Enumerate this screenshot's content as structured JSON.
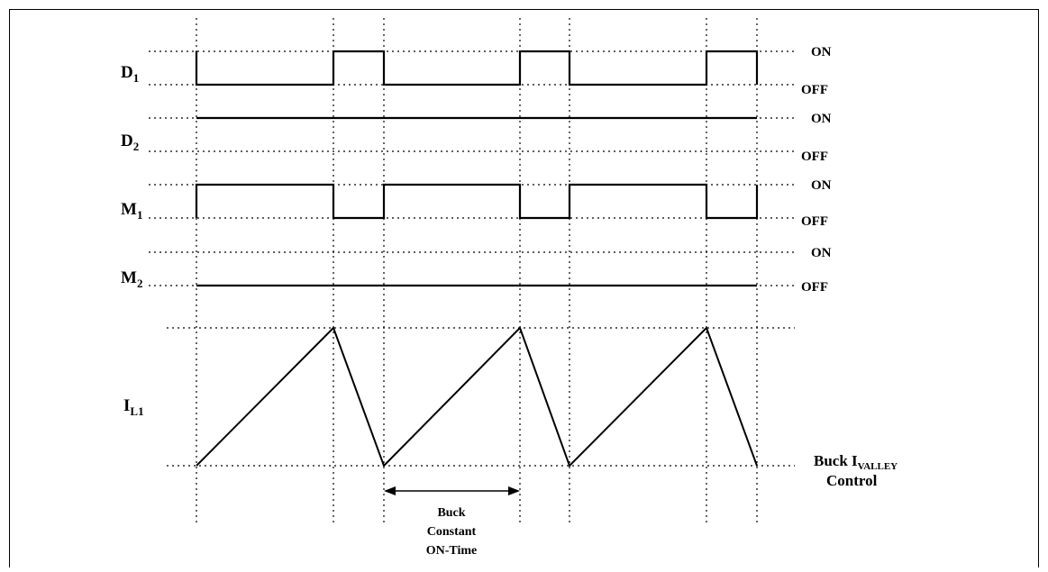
{
  "signals": {
    "d1": {
      "main": "D",
      "sub": "1"
    },
    "d2": {
      "main": "D",
      "sub": "2"
    },
    "m1": {
      "main": "M",
      "sub": "1"
    },
    "m2": {
      "main": "M",
      "sub": "2"
    },
    "il1": {
      "main": "I",
      "sub": "L1"
    }
  },
  "states": {
    "on": "ON",
    "off": "OFF"
  },
  "control_label": {
    "line1_main": "Buck I",
    "line1_sub": "VALLEY",
    "line2": "Control"
  },
  "on_time_label": {
    "line1": "Buck",
    "line2": "Constant",
    "line3": "ON-Time"
  },
  "waveforms": {
    "d1": [
      1,
      0,
      1,
      0,
      1,
      0,
      1
    ],
    "d2": "constant-high",
    "m1": [
      0,
      1,
      0,
      1,
      0,
      1,
      0
    ],
    "m2": "constant-low",
    "il1": "sawtooth, rising during M1 ON, falling during M1 OFF"
  }
}
